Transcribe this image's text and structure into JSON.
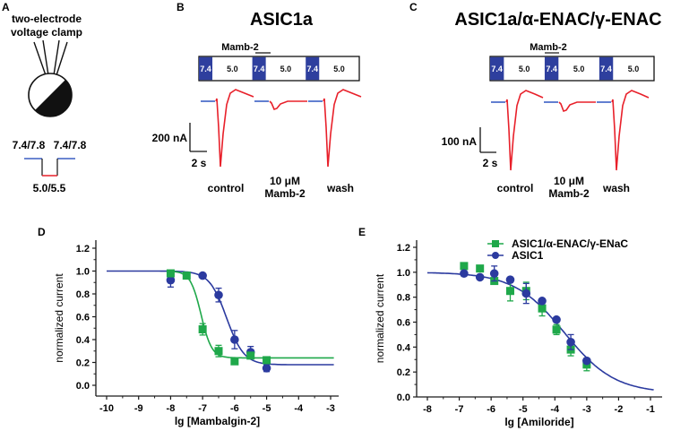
{
  "colors": {
    "ph_block": "#2e3f9e",
    "trace_red": "#e8202a",
    "trace_blue": "#3b5fc4",
    "asic1_blue": "#2b3a9f",
    "combo_green": "#1fa84a",
    "axis": "#1a1a1a"
  },
  "panelA": {
    "letter": "A",
    "title_line1": "two-electrode",
    "title_line2": "voltage clamp",
    "ph_left": "7.4/7.8",
    "ph_right": "7.4/7.8",
    "ph_low": "5.0/5.5"
  },
  "panelB": {
    "letter": "B",
    "title": "ASIC1a",
    "drug_bar_label": "Mamb-2",
    "protocol": [
      "7.4",
      "5.0",
      "7.4",
      "5.0",
      "7.4",
      "5.0"
    ],
    "scale_current": "200 nA",
    "scale_time": "2 s",
    "conditions": [
      "control",
      "10 μM",
      "Mamb-2",
      "wash"
    ]
  },
  "panelC": {
    "letter": "C",
    "title": "ASIC1a/α-ENAC/γ-ENAC",
    "drug_bar_label": "Mamb-2",
    "protocol": [
      "7.4",
      "5.0",
      "7.4",
      "5.0",
      "7.4",
      "5.0"
    ],
    "scale_current": "100 nA",
    "scale_time": "2 s",
    "conditions": [
      "control",
      "10 μM",
      "Mamb-2",
      "wash"
    ]
  },
  "chart_data": [
    {
      "panel": "D",
      "type": "scatter",
      "title": "",
      "xlabel": "lg [Mambalgin-2]",
      "ylabel": "normalized current",
      "xlim": [
        -10.3,
        -2.8
      ],
      "ylim": [
        -0.1,
        1.25
      ],
      "xticks": [
        -10,
        -9,
        -8,
        -7,
        -6,
        -5,
        -4,
        -3
      ],
      "xtick_labels": [
        "-10",
        "-9",
        "-8",
        "-7",
        "-6",
        "-5",
        "-4",
        "-3"
      ],
      "yticks": [
        0.0,
        0.2,
        0.4,
        0.6,
        0.8,
        1.0,
        1.2
      ],
      "ytick_labels": [
        "0.0",
        "0.2",
        "0.4",
        "0.6",
        "0.8",
        "1.0",
        "1.2"
      ],
      "grid": false,
      "series": [
        {
          "name": "ASIC1",
          "color": "#2b3a9f",
          "marker": "circle",
          "x": [
            -8,
            -7,
            -6.5,
            -6,
            -5.5,
            -5
          ],
          "y": [
            0.92,
            0.96,
            0.79,
            0.4,
            0.29,
            0.15
          ],
          "err": [
            0.06,
            0.01,
            0.06,
            0.08,
            0.05,
            0.03
          ],
          "fit": {
            "top": 1.0,
            "bottom": 0.18,
            "logIC50": -6.25,
            "hill": 1.6,
            "x_range": [
              -10,
              -2.9
            ]
          }
        },
        {
          "name": "ASIC1/α-ENAC/γ-ENaC",
          "color": "#1fa84a",
          "marker": "square",
          "x": [
            -8,
            -7.5,
            -7,
            -6.5,
            -6,
            -5.5,
            -5
          ],
          "y": [
            0.98,
            0.96,
            0.49,
            0.3,
            0.21,
            0.26,
            0.22
          ],
          "err": [
            0.01,
            0.02,
            0.05,
            0.05,
            0.01,
            0.02,
            0.02
          ],
          "fit": {
            "top": 1.0,
            "bottom": 0.24,
            "logIC50": -7.05,
            "hill": 2.6,
            "x_range": [
              -8,
              -2.9
            ]
          }
        }
      ]
    },
    {
      "panel": "E",
      "type": "scatter",
      "title": "",
      "xlabel": "lg [Amiloride]",
      "ylabel": "normalized current",
      "xlim": [
        -8.3,
        -0.7
      ],
      "ylim": [
        0.0,
        1.25
      ],
      "xticks": [
        -8,
        -7,
        -6,
        -5,
        -4,
        -3,
        -2,
        -1
      ],
      "xtick_labels": [
        "-8",
        "-7",
        "-6",
        "-5",
        "-4",
        "-3",
        "-2",
        "-1"
      ],
      "yticks": [
        0.0,
        0.2,
        0.4,
        0.6,
        0.8,
        1.0,
        1.2
      ],
      "ytick_labels": [
        "0.0",
        "0.2",
        "0.4",
        "0.6",
        "0.8",
        "1.0",
        "1.2"
      ],
      "grid": false,
      "legend": "top-right",
      "series": [
        {
          "name": "ASIC1/α-ENAC/γ-ENaC",
          "color": "#1fa84a",
          "marker": "square",
          "x": [
            -6.85,
            -6.35,
            -5.9,
            -5.4,
            -4.9,
            -4.4,
            -3.95,
            -3.5,
            -3.0
          ],
          "y": [
            1.05,
            1.03,
            0.93,
            0.85,
            0.85,
            0.71,
            0.54,
            0.38,
            0.26
          ],
          "err": [
            0.0,
            0.0,
            0.02,
            0.08,
            0.07,
            0.06,
            0.04,
            0.05,
            0.05
          ],
          "fit": null
        },
        {
          "name": "ASIC1",
          "color": "#2b3a9f",
          "marker": "circle",
          "x": [
            -6.85,
            -6.35,
            -5.9,
            -5.4,
            -4.9,
            -4.4,
            -3.95,
            -3.5,
            -3.0
          ],
          "y": [
            0.99,
            0.96,
            0.99,
            0.94,
            0.83,
            0.77,
            0.62,
            0.44,
            0.29
          ],
          "err": [
            0.0,
            0.0,
            0.06,
            0.0,
            0.08,
            0.0,
            0.0,
            0.06,
            0.0
          ],
          "fit": {
            "top": 1.0,
            "bottom": 0.03,
            "logIC50": -3.7,
            "hill": 0.55,
            "x_range": [
              -8,
              -0.9
            ]
          }
        }
      ]
    }
  ]
}
